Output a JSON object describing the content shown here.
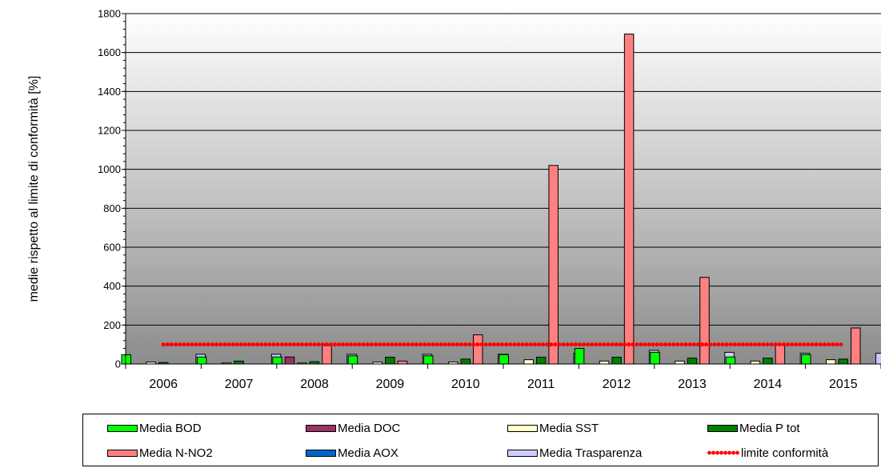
{
  "chart_data": {
    "type": "bar",
    "title": "",
    "xlabel": "",
    "ylabel": "medie rispetto al limite di conformità [%]",
    "ylim": [
      0,
      1800
    ],
    "yticks": [
      "0",
      "200",
      "400",
      "600",
      "800",
      "1000",
      "1200",
      "1400",
      "1600",
      "1800"
    ],
    "grid": true,
    "legend_position": "bottom",
    "categories": [
      "2006",
      "2007",
      "2008",
      "2009",
      "2010",
      "2011",
      "2012",
      "2013",
      "2014",
      "2015"
    ],
    "series": [
      {
        "name": "Media BOD",
        "color": "#00ff00",
        "values": [
          48,
          36,
          36,
          42,
          42,
          48,
          80,
          60,
          36,
          48
        ]
      },
      {
        "name": "Media DOC",
        "color": "#993366",
        "values": [
          0,
          0,
          36,
          0,
          0,
          0,
          0,
          0,
          0,
          0
        ]
      },
      {
        "name": "Media SST",
        "color": "#ffffcc",
        "values": [
          10,
          5,
          5,
          10,
          10,
          22,
          15,
          15,
          15,
          22
        ]
      },
      {
        "name": "Media P tot",
        "color": "#008000",
        "values": [
          8,
          15,
          12,
          35,
          25,
          35,
          35,
          30,
          30,
          25
        ]
      },
      {
        "name": "Media N-NO2",
        "color": "#ff8080",
        "values": [
          0,
          0,
          95,
          15,
          150,
          1020,
          1695,
          445,
          100,
          185
        ]
      },
      {
        "name": "Media AOX",
        "color": "#0066cc",
        "values": [
          0,
          0,
          0,
          0,
          0,
          0,
          0,
          0,
          0,
          0
        ]
      },
      {
        "name": "Media Trasparenza",
        "color": "#ccccff",
        "values": [
          50,
          50,
          50,
          50,
          50,
          55,
          70,
          60,
          55,
          55
        ]
      }
    ],
    "reference_line": {
      "name": "limite conformità",
      "color": "#ff0000",
      "value": 100,
      "style": "dotted"
    }
  }
}
